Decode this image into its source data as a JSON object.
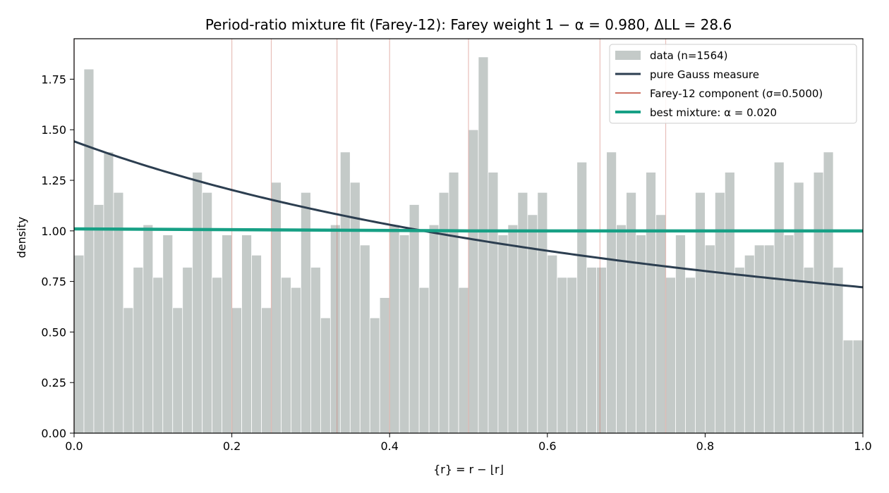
{
  "chart_data": {
    "type": "bar",
    "title": "Period-ratio mixture fit (Farey-12):  Farey weight 1 − α = 0.980,  ΔLL = 28.6",
    "xlabel": "{r} = r − ⌊r⌋",
    "ylabel": "density",
    "xlim": [
      0.0,
      1.0
    ],
    "ylim": [
      0.0,
      1.95
    ],
    "x_ticks": [
      0.0,
      0.2,
      0.4,
      0.6,
      0.8,
      1.0
    ],
    "x_tick_labels": [
      "0.0",
      "0.2",
      "0.4",
      "0.6",
      "0.8",
      "1.0"
    ],
    "y_ticks": [
      0.0,
      0.25,
      0.5,
      0.75,
      1.0,
      1.25,
      1.5,
      1.75
    ],
    "y_tick_labels": [
      "0.00",
      "0.25",
      "0.50",
      "0.75",
      "1.00",
      "1.25",
      "1.50",
      "1.75"
    ],
    "grid": false,
    "legend_position": "top-right",
    "histogram": {
      "name": "data (n=1564)",
      "bin_width": 0.0125,
      "bin_start": 0.0,
      "values": [
        0.88,
        1.8,
        1.13,
        1.39,
        1.19,
        0.62,
        0.82,
        1.03,
        0.77,
        0.98,
        0.62,
        0.82,
        1.29,
        1.19,
        0.77,
        0.98,
        0.62,
        0.98,
        0.88,
        0.62,
        1.24,
        0.77,
        0.72,
        1.19,
        0.82,
        0.57,
        1.03,
        1.39,
        1.24,
        0.93,
        0.57,
        0.67,
        1.03,
        0.98,
        1.13,
        0.72,
        1.03,
        1.19,
        1.29,
        0.72,
        1.5,
        1.86,
        1.29,
        0.98,
        1.03,
        1.19,
        1.08,
        1.19,
        0.88,
        0.77,
        0.77,
        1.34,
        0.82,
        0.82,
        1.39,
        1.03,
        1.19,
        0.98,
        1.29,
        1.08,
        0.77,
        0.98,
        0.77,
        1.19,
        0.93,
        1.19,
        1.29,
        0.82,
        0.88,
        0.93,
        0.93,
        1.34,
        0.98,
        1.24,
        0.82,
        1.29,
        1.39,
        0.82,
        0.46,
        0.46
      ]
    },
    "gauss_curve": {
      "name": "pure Gauss measure"
    },
    "farey_lines": {
      "name": "Farey-12 component (σ=0.5000)",
      "positions": [
        0.0,
        0.2,
        0.25,
        0.3333,
        0.4,
        0.5,
        0.6667,
        0.75
      ]
    },
    "mixture_curve": {
      "name": "best mixture:  α = 0.020",
      "x": [
        0.0,
        0.5,
        1.0
      ],
      "y": [
        1.01,
        1.0,
        1.0
      ]
    },
    "colors": {
      "bars": "#c4cac8",
      "gauss": "#2c3e50",
      "farey": "#cd7163",
      "mixture": "#17a085",
      "frame": "#000000"
    }
  }
}
